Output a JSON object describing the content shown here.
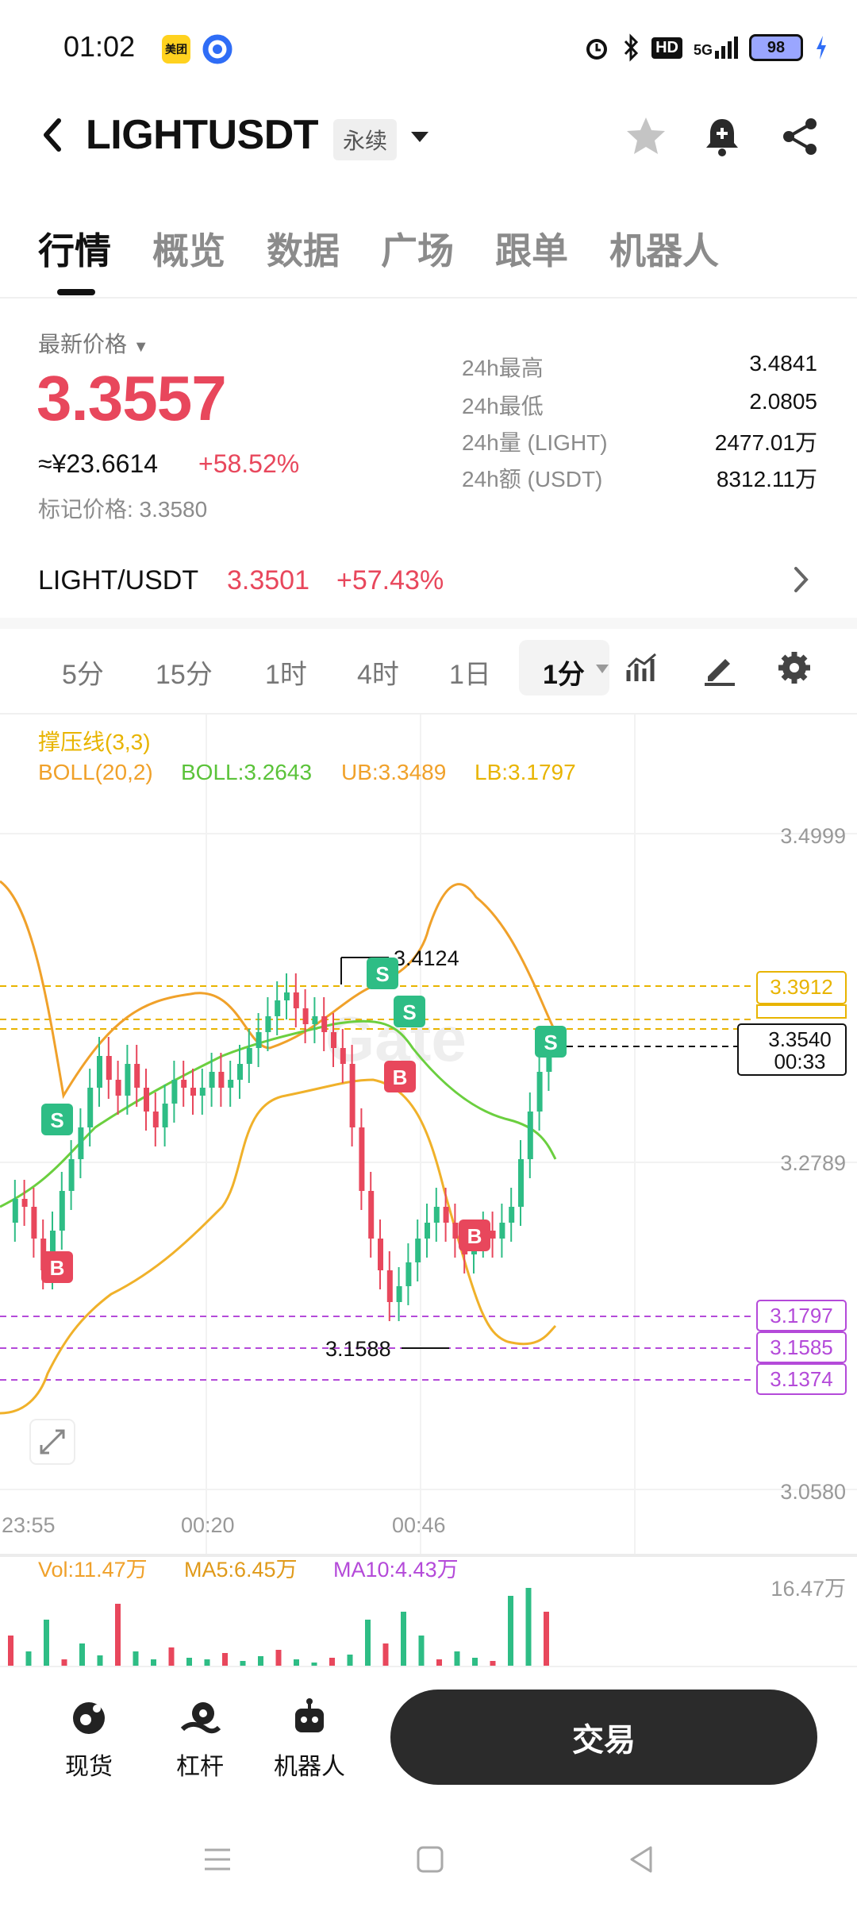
{
  "status_bar": {
    "time": "01:02",
    "app_icons": [
      "meituan-icon",
      "browser-icon"
    ],
    "right_icons": [
      "alarm-icon",
      "bluetooth-icon",
      "hd-icon",
      "5g-signal-icon",
      "battery-icon",
      "charging-icon"
    ],
    "hd": "HD",
    "net": "5G",
    "battery": "98"
  },
  "header": {
    "symbol": "LIGHTUSDT",
    "contract_type": "永续"
  },
  "tabs": [
    {
      "label": "行情",
      "active": true
    },
    {
      "label": "概览",
      "active": false
    },
    {
      "label": "数据",
      "active": false
    },
    {
      "label": "广场",
      "active": false
    },
    {
      "label": "跟单",
      "active": false
    },
    {
      "label": "机器人",
      "active": false
    }
  ],
  "price": {
    "label": "最新价格",
    "value": "3.3557",
    "cny": "≈¥23.6614",
    "change": "+58.52%",
    "mark": "标记价格: 3.3580"
  },
  "stats": [
    {
      "label": "24h最高",
      "value": "3.4841"
    },
    {
      "label": "24h最低",
      "value": "2.0805"
    },
    {
      "label": "24h量 (LIGHT)",
      "value": "2477.01万"
    },
    {
      "label": "24h额 (USDT)",
      "value": "8312.11万"
    }
  ],
  "spot": {
    "pair": "LIGHT/USDT",
    "price": "3.3501",
    "change": "+57.43%"
  },
  "intervals": [
    "5分",
    "15分",
    "1时",
    "4时",
    "1日",
    "1分"
  ],
  "active_interval": "1分",
  "chart": {
    "indicator_title": "撑压线(3,3)",
    "boll_label": "BOLL(20,2)",
    "boll_mid": "BOLL:3.2643",
    "boll_ub": "UB:3.3489",
    "boll_lb": "LB:3.1797",
    "y_ticks": [
      "3.4999",
      "3.2789",
      "3.0580"
    ],
    "x_ticks": [
      "23:55",
      "00:20",
      "00:46"
    ],
    "high_label": "3.4124",
    "low_label": "3.1588",
    "resistance_levels": [
      "3.3912"
    ],
    "support_levels": [
      "3.1797",
      "3.1585",
      "3.1374"
    ],
    "current_price": "3.3540",
    "countdown": "00:33",
    "signals": [
      "S",
      "S",
      "S",
      "S",
      "B",
      "B",
      "B"
    ],
    "watermark": "Gate",
    "colors": {
      "up": "#2ebd85",
      "down": "#e8475c",
      "boll_mid": "#6bcf3f",
      "boll_band": "#f0b12a",
      "resistance": "#e8b400",
      "support": "#b44ad9"
    }
  },
  "volume": {
    "vol": "Vol:11.47万",
    "ma5": "MA5:6.45万",
    "ma10": "MA10:4.43万",
    "max_tick": "16.47万"
  },
  "bottom_nav": [
    {
      "label": "现货",
      "icon": "spot-icon"
    },
    {
      "label": "杠杆",
      "icon": "leverage-icon"
    },
    {
      "label": "机器人",
      "icon": "robot-icon"
    }
  ],
  "trade_button": "交易"
}
